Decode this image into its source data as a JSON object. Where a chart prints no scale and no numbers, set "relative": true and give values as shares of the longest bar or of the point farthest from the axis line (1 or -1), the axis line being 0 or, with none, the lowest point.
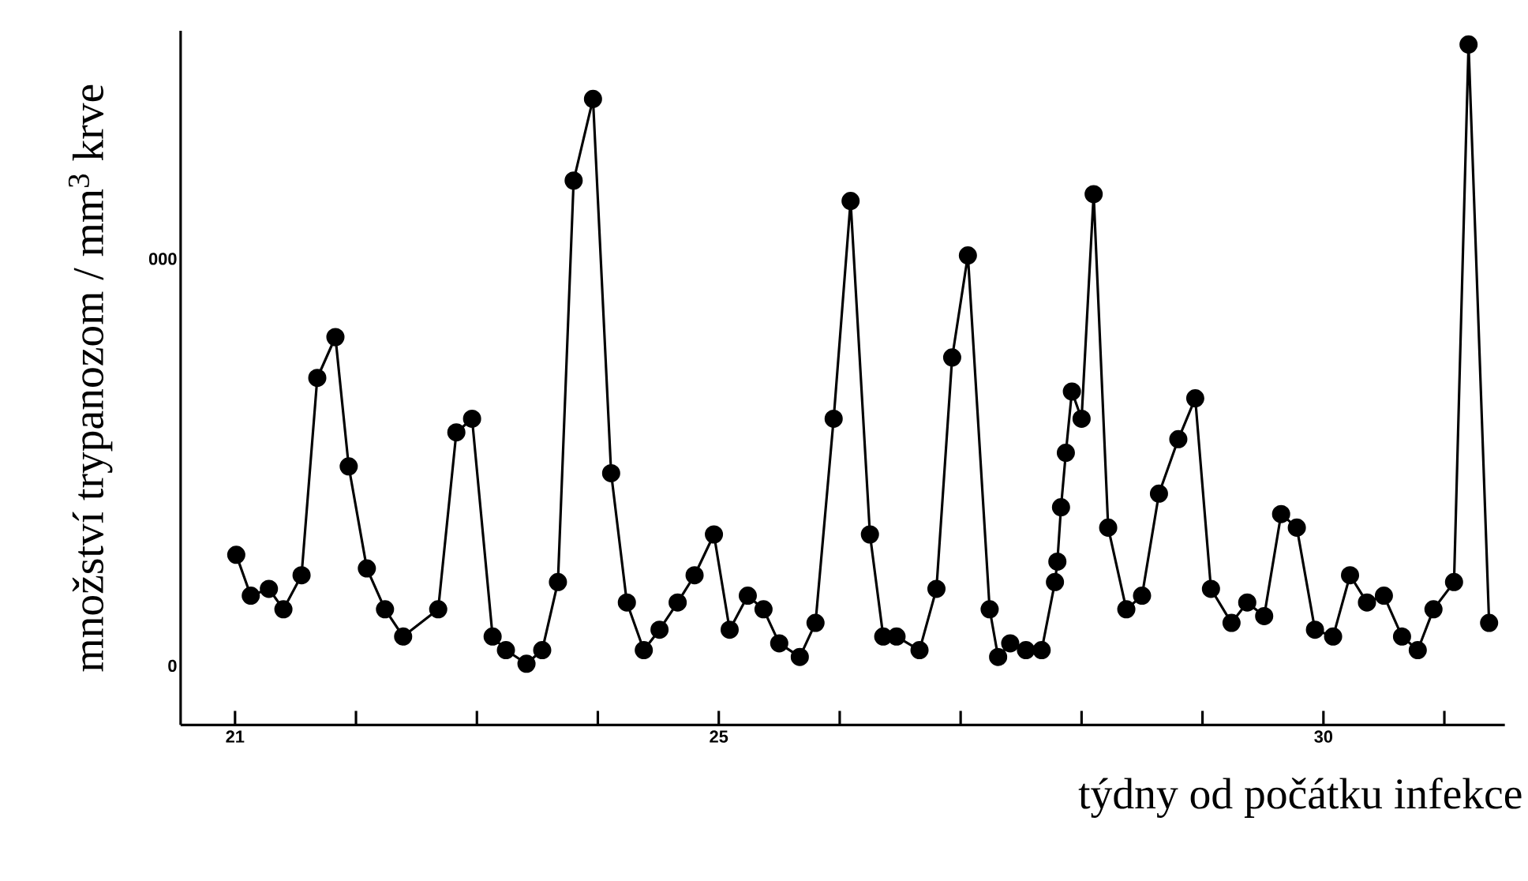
{
  "chart_data": {
    "type": "line",
    "xlabel": "týdny od počátku infekce",
    "ylabel": "množství trypanozom / mm$^{3}$ krve",
    "annotations": [
      "0",
      "000"
    ],
    "relative": true,
    "x": [
      21.01,
      21.13,
      21.28,
      21.4,
      21.55,
      21.68,
      21.83,
      21.94,
      22.09,
      22.24,
      22.39,
      22.68,
      22.83,
      22.96,
      23.13,
      23.24,
      23.41,
      23.54,
      23.67,
      23.8,
      23.96,
      24.11,
      24.24,
      24.38,
      24.51,
      24.66,
      24.8,
      24.96,
      25.09,
      25.24,
      25.37,
      25.5,
      25.67,
      25.8,
      25.95,
      26.09,
      26.25,
      26.36,
      26.47,
      26.66,
      26.8,
      26.93,
      27.06,
      27.24,
      27.31,
      27.41,
      27.54,
      27.67,
      27.78,
      27.8,
      27.83,
      27.87,
      27.92,
      28.0,
      28.1,
      28.22,
      28.37,
      28.5,
      28.64,
      28.8,
      28.94,
      29.07,
      29.24,
      29.37,
      29.51,
      29.65,
      29.78,
      29.93,
      30.08,
      30.22,
      30.36,
      30.5,
      30.65,
      30.78,
      30.91,
      31.08,
      31.2,
      31.37
    ],
    "series": [
      {
        "color": "#000000",
        "values": [
          0.25,
          0.19,
          0.2,
          0.17,
          0.22,
          0.51,
          0.57,
          0.38,
          0.23,
          0.17,
          0.13,
          0.17,
          0.43,
          0.45,
          0.13,
          0.11,
          0.09,
          0.11,
          0.21,
          0.8,
          0.92,
          0.37,
          0.18,
          0.11,
          0.14,
          0.18,
          0.22,
          0.28,
          0.14,
          0.19,
          0.17,
          0.12,
          0.1,
          0.15,
          0.45,
          0.77,
          0.28,
          0.13,
          0.13,
          0.11,
          0.2,
          0.54,
          0.69,
          0.17,
          0.1,
          0.12,
          0.11,
          0.11,
          0.21,
          0.24,
          0.32,
          0.4,
          0.49,
          0.45,
          0.78,
          0.29,
          0.17,
          0.19,
          0.34,
          0.42,
          0.48,
          0.2,
          0.15,
          0.18,
          0.16,
          0.31,
          0.29,
          0.14,
          0.13,
          0.22,
          0.18,
          0.19,
          0.13,
          0.11,
          0.17,
          0.21,
          1,
          0.15
        ]
      }
    ],
    "marker": "circle",
    "line_style": "solid",
    "xlim": [
      20.55,
      31.5
    ],
    "xticks": [
      21,
      {
        "value": 22,
        "label": null
      },
      {
        "value": 23,
        "label": null
      },
      {
        "value": 24,
        "label": null
      },
      25,
      {
        "value": 26,
        "label": null
      },
      {
        "value": 27,
        "label": null
      },
      {
        "value": 28,
        "label": null
      },
      {
        "value": 29,
        "label": null
      },
      30,
      {
        "value": 31,
        "label": null
      }
    ]
  }
}
